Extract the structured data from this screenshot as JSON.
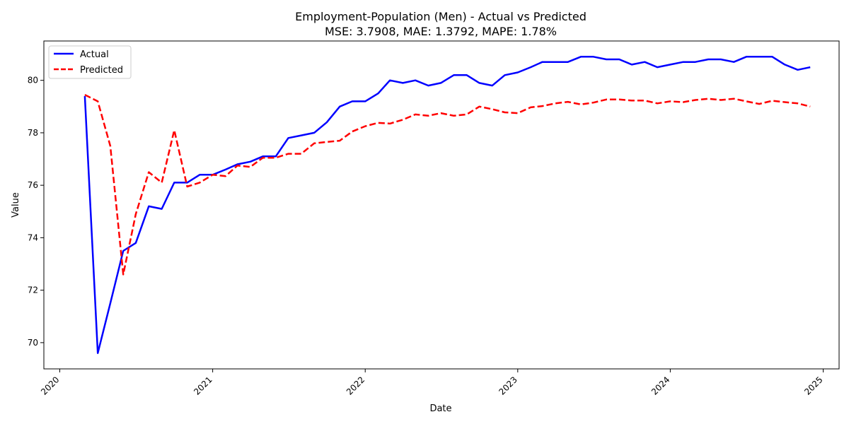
{
  "chart_data": {
    "type": "line",
    "title_line1": "Employment-Population (Men) - Actual vs Predicted",
    "title_line2": "MSE: 3.7908, MAE: 1.3792, MAPE: 1.78%",
    "xlabel": "Date",
    "ylabel": "Value",
    "x_ticks": [
      "2020",
      "2021",
      "2022",
      "2023",
      "2024",
      "2025"
    ],
    "y_ticks": [
      70,
      72,
      74,
      76,
      78,
      80
    ],
    "xlim": [
      "2019-11-24",
      "2025-02-08"
    ],
    "ylim": [
      69.0,
      81.5
    ],
    "grid": false,
    "legend_position": "top-left",
    "x": [
      "2020-03-01",
      "2020-04-01",
      "2020-05-01",
      "2020-06-01",
      "2020-07-01",
      "2020-08-01",
      "2020-09-01",
      "2020-10-01",
      "2020-11-01",
      "2020-12-01",
      "2021-01-01",
      "2021-02-01",
      "2021-03-01",
      "2021-04-01",
      "2021-05-01",
      "2021-06-01",
      "2021-07-01",
      "2021-08-01",
      "2021-09-01",
      "2021-10-01",
      "2021-11-01",
      "2021-12-01",
      "2022-01-01",
      "2022-02-01",
      "2022-03-01",
      "2022-04-01",
      "2022-05-01",
      "2022-06-01",
      "2022-07-01",
      "2022-08-01",
      "2022-09-01",
      "2022-10-01",
      "2022-11-01",
      "2022-12-01",
      "2023-01-01",
      "2023-02-01",
      "2023-03-01",
      "2023-04-01",
      "2023-05-01",
      "2023-06-01",
      "2023-07-01",
      "2023-08-01",
      "2023-09-01",
      "2023-10-01",
      "2023-11-01",
      "2023-12-01",
      "2024-01-01",
      "2024-02-01",
      "2024-03-01",
      "2024-04-01",
      "2024-05-01",
      "2024-06-01",
      "2024-07-01",
      "2024-08-01",
      "2024-09-01",
      "2024-10-01",
      "2024-11-01",
      "2024-12-01"
    ],
    "series": [
      {
        "name": "Actual",
        "color": "#0000ff",
        "dash": "solid",
        "values": [
          79.4,
          69.6,
          71.5,
          73.5,
          73.8,
          75.2,
          75.1,
          76.1,
          76.1,
          76.4,
          76.4,
          76.6,
          76.8,
          76.9,
          77.1,
          77.1,
          77.8,
          77.9,
          78.0,
          78.4,
          79.0,
          79.2,
          79.2,
          79.5,
          80.0,
          79.9,
          80.0,
          79.8,
          79.9,
          80.2,
          80.2,
          79.9,
          79.8,
          80.2,
          80.3,
          80.5,
          80.7,
          80.7,
          80.7,
          80.9,
          80.9,
          80.8,
          80.8,
          80.6,
          80.7,
          80.5,
          80.6,
          80.7,
          80.7,
          80.8,
          80.8,
          80.7,
          80.9,
          80.9,
          80.9,
          80.6,
          80.4,
          80.5
        ]
      },
      {
        "name": "Predicted",
        "color": "#ff0000",
        "dash": "dashed",
        "values": [
          79.45,
          79.2,
          77.5,
          72.6,
          74.9,
          76.5,
          76.1,
          78.1,
          75.95,
          76.1,
          76.4,
          76.35,
          76.75,
          76.7,
          77.05,
          77.05,
          77.2,
          77.2,
          77.6,
          77.65,
          77.7,
          78.05,
          78.25,
          78.38,
          78.35,
          78.5,
          78.7,
          78.65,
          78.75,
          78.65,
          78.7,
          79.0,
          78.9,
          78.78,
          78.75,
          78.97,
          79.02,
          79.12,
          79.18,
          79.08,
          79.15,
          79.27,
          79.27,
          79.23,
          79.23,
          79.12,
          79.2,
          79.17,
          79.25,
          79.3,
          79.25,
          79.3,
          79.2,
          79.1,
          79.22,
          79.17,
          79.12,
          79.0
        ]
      }
    ]
  }
}
